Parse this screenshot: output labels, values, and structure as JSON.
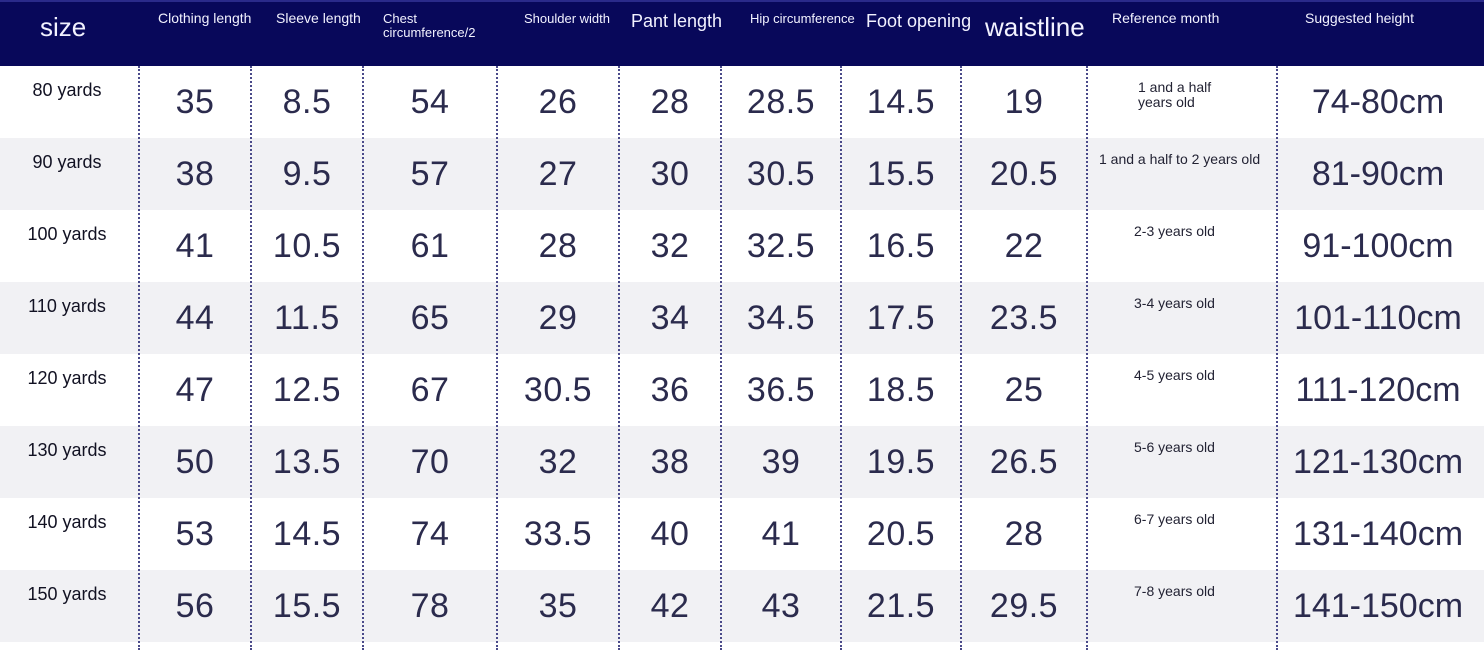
{
  "table": {
    "headers": [
      "size",
      "Clothing length",
      "Sleeve length",
      "Chest circumference/2",
      "Shoulder width",
      "Pant length",
      "Hip circumference",
      "Foot opening",
      "waistline",
      "Reference month",
      "Suggested height"
    ],
    "rows": [
      {
        "size": "80 yards",
        "values": [
          "35",
          "8.5",
          "54",
          "26",
          "28",
          "28.5",
          "14.5",
          "19"
        ],
        "age": "1 and a half years old",
        "height": "74-80cm"
      },
      {
        "size": "90 yards",
        "values": [
          "38",
          "9.5",
          "57",
          "27",
          "30",
          "30.5",
          "15.5",
          "20.5"
        ],
        "age": "1 and a half to 2 years old",
        "height": "81-90cm"
      },
      {
        "size": "100 yards",
        "values": [
          "41",
          "10.5",
          "61",
          "28",
          "32",
          "32.5",
          "16.5",
          "22"
        ],
        "age": "2-3 years old",
        "height": "91-100cm"
      },
      {
        "size": "110 yards",
        "values": [
          "44",
          "11.5",
          "65",
          "29",
          "34",
          "34.5",
          "17.5",
          "23.5"
        ],
        "age": "3-4 years old",
        "height": "101-110cm"
      },
      {
        "size": "120 yards",
        "values": [
          "47",
          "12.5",
          "67",
          "30.5",
          "36",
          "36.5",
          "18.5",
          "25"
        ],
        "age": "4-5 years old",
        "height": "111-120cm"
      },
      {
        "size": "130 yards",
        "values": [
          "50",
          "13.5",
          "70",
          "32",
          "38",
          "39",
          "19.5",
          "26.5"
        ],
        "age": "5-6 years old",
        "height": "121-130cm"
      },
      {
        "size": "140 yards",
        "values": [
          "53",
          "14.5",
          "74",
          "33.5",
          "40",
          "41",
          "20.5",
          "28"
        ],
        "age": "6-7 years old",
        "height": "131-140cm"
      },
      {
        "size": "150 yards",
        "values": [
          "56",
          "15.5",
          "78",
          "35",
          "42",
          "43",
          "21.5",
          "29.5"
        ],
        "age": "7-8 years old",
        "height": "141-150cm"
      }
    ]
  },
  "colors": {
    "header_bg": "#08085a",
    "header_text": "#f2f2ff",
    "row_alt": "#f1f1f4",
    "grid_dots": "#4a4a8a",
    "number_text": "#2b2b4d"
  }
}
